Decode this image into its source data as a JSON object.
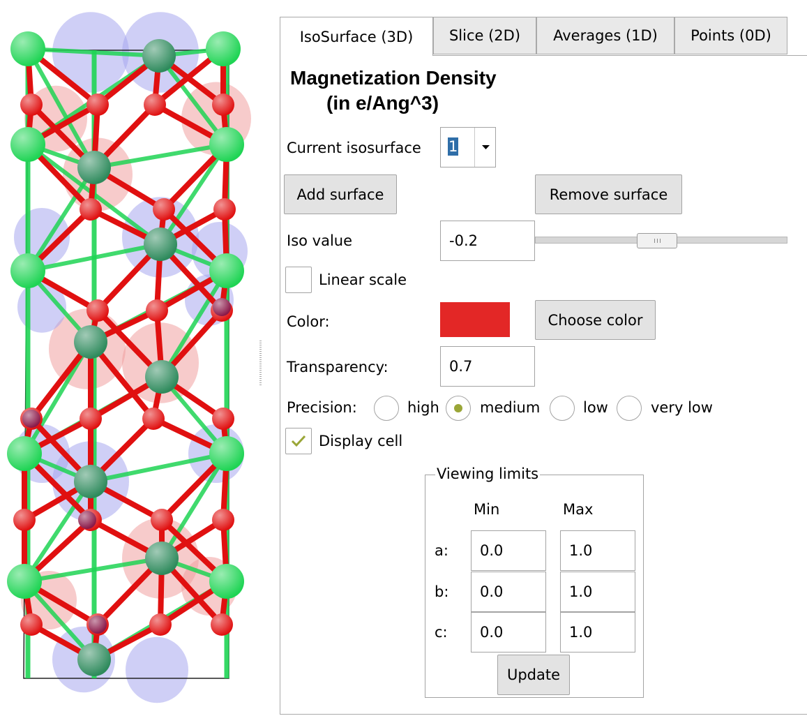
{
  "tabs": [
    {
      "label": "IsoSurface (3D)",
      "active": true
    },
    {
      "label": "Slice (2D)",
      "active": false
    },
    {
      "label": "Averages (1D)",
      "active": false
    },
    {
      "label": "Points (0D)",
      "active": false
    }
  ],
  "section": {
    "title_line1": "Magnetization Density",
    "title_line2": "(in e/Ang^3)"
  },
  "isosurface": {
    "label": "Current isosurface",
    "selected": "1",
    "add_button": "Add surface",
    "remove_button": "Remove surface"
  },
  "iso_value": {
    "label": "Iso value",
    "value": "-0.2",
    "slider_fraction": 0.48
  },
  "linear_scale": {
    "label": "Linear scale",
    "checked": false
  },
  "color": {
    "label": "Color:",
    "swatch": "#e32726",
    "button": "Choose color"
  },
  "transparency": {
    "label": "Transparency:",
    "value": "0.7"
  },
  "precision": {
    "label": "Precision:",
    "options": [
      {
        "label": "high",
        "selected": false
      },
      {
        "label": "medium",
        "selected": true
      },
      {
        "label": "low",
        "selected": false
      },
      {
        "label": "very low",
        "selected": false
      }
    ]
  },
  "display_cell": {
    "label": "Display cell",
    "checked": true
  },
  "viewing_limits": {
    "title": "Viewing limits",
    "min_header": "Min",
    "max_header": "Max",
    "rows": [
      {
        "axis": "a:",
        "min": "0.0",
        "max": "1.0"
      },
      {
        "axis": "b:",
        "min": "0.0",
        "max": "1.0"
      },
      {
        "axis": "c:",
        "min": "0.0",
        "max": "1.0"
      }
    ],
    "update_button": "Update"
  },
  "colors": {
    "oxygen": "#e01010",
    "light_atom": "#1fd454",
    "dark_atom": "#2e8a5c",
    "teal_atom": "#1e8c7a",
    "purple_atom": "#8a1848",
    "pos_lobe": "#f0a0a0",
    "neg_lobe": "#a8a8ee",
    "accent_check": "#9aa637"
  }
}
